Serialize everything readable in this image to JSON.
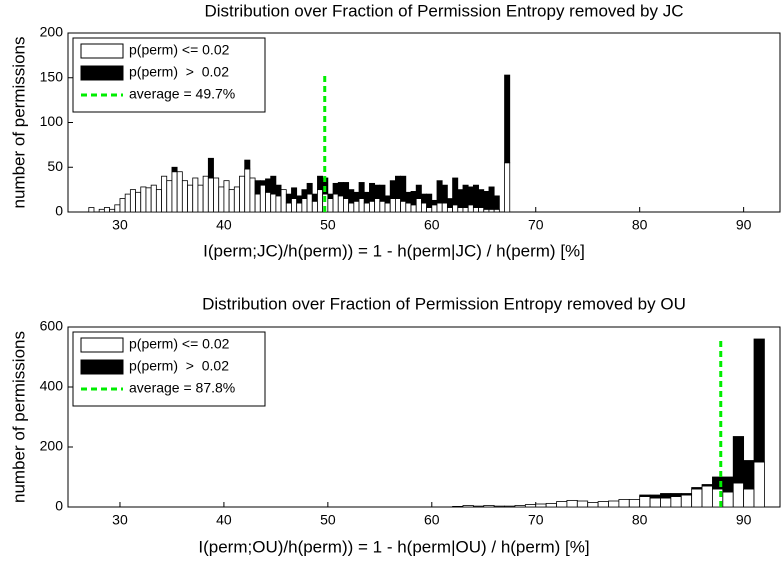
{
  "chart_data": [
    {
      "type": "histogram",
      "title": "Distribution over Fraction of Permission Entropy removed by JC",
      "xlabel": "I(perm;JC)/h(perm)) = 1 - h(perm|JC) / h(perm) [%]",
      "ylabel": "number of permissions",
      "bins": [
        27,
        27.5,
        28,
        28.5,
        29,
        29.5,
        30,
        30.5,
        31,
        31.5,
        32,
        32.5,
        33,
        33.5,
        34,
        34.5,
        35,
        35.5,
        36,
        36.5,
        37,
        37.5,
        38,
        38.5,
        39,
        39.5,
        40,
        40.5,
        41,
        41.5,
        42,
        42.5,
        43,
        43.5,
        44,
        44.5,
        45,
        45.5,
        46,
        46.5,
        47,
        47.5,
        48,
        48.5,
        49,
        49.5,
        50,
        50.5,
        51,
        51.5,
        52,
        52.5,
        53,
        53.5,
        54,
        54.5,
        55,
        55.5,
        56,
        56.5,
        57,
        57.5,
        58,
        58.5,
        59,
        59.5,
        60,
        60.5,
        61,
        61.5,
        62,
        62.5,
        63,
        63.5,
        64,
        64.5,
        65,
        65.5,
        66,
        66.5,
        67,
        67.5
      ],
      "series": [
        {
          "name": "p(perm) <= 0.02",
          "color": "#ffffff",
          "values": [
            5,
            0,
            3,
            5,
            3,
            8,
            15,
            20,
            25,
            22,
            28,
            27,
            30,
            25,
            40,
            35,
            45,
            45,
            35,
            30,
            38,
            30,
            40,
            38,
            38,
            28,
            35,
            25,
            28,
            40,
            48,
            38,
            20,
            30,
            22,
            20,
            18,
            25,
            10,
            15,
            10,
            15,
            20,
            12,
            25,
            20,
            15,
            20,
            18,
            15,
            10,
            12,
            15,
            10,
            12,
            15,
            12,
            10,
            15,
            15,
            12,
            10,
            8,
            15,
            10,
            5,
            8,
            10,
            10,
            5,
            8,
            5,
            5,
            8,
            5,
            5,
            3,
            3,
            3,
            0,
            55
          ]
        },
        {
          "name": "p(perm)  >  0.02",
          "color": "#000000",
          "values": [
            0,
            0,
            0,
            0,
            0,
            0,
            0,
            0,
            0,
            0,
            0,
            0,
            0,
            0,
            0,
            0,
            5,
            0,
            0,
            0,
            0,
            0,
            0,
            22,
            0,
            0,
            0,
            0,
            0,
            0,
            10,
            0,
            15,
            5,
            15,
            20,
            12,
            0,
            10,
            12,
            8,
            10,
            12,
            8,
            15,
            18,
            5,
            12,
            15,
            18,
            15,
            10,
            18,
            12,
            20,
            15,
            18,
            8,
            20,
            25,
            28,
            12,
            15,
            15,
            10,
            15,
            5,
            25,
            20,
            10,
            30,
            20,
            25,
            20,
            25,
            20,
            20,
            25,
            15,
            0,
            98
          ]
        }
      ],
      "average": {
        "value": 49.7,
        "label": "average = 49.7%",
        "color": "#00ee00"
      },
      "xlim": [
        25,
        93.5
      ],
      "xticks": [
        30,
        40,
        50,
        60,
        70,
        80,
        90
      ],
      "ylim": [
        0,
        200
      ],
      "yticks": [
        0,
        50,
        100,
        150,
        200
      ],
      "legend": "upper left"
    },
    {
      "type": "histogram",
      "title": "Distribution over Fraction of Permission Entropy removed by OU",
      "xlabel": "I(perm;OU)/h(perm)) = 1 - h(perm|OU) / h(perm) [%]",
      "ylabel": "number of permissions",
      "bins": [
        62,
        63,
        64,
        65,
        66,
        67,
        68,
        69,
        70,
        71,
        72,
        73,
        74,
        75,
        76,
        77,
        78,
        79,
        80,
        81,
        82,
        83,
        84,
        85,
        86,
        87,
        88,
        89,
        90,
        91,
        92
      ],
      "series": [
        {
          "name": "p(perm) <= 0.02",
          "color": "#ffffff",
          "values": [
            2,
            5,
            3,
            5,
            3,
            3,
            5,
            8,
            10,
            12,
            18,
            22,
            20,
            15,
            18,
            20,
            25,
            25,
            35,
            30,
            30,
            35,
            40,
            60,
            70,
            60,
            50,
            80,
            60,
            150
          ]
        },
        {
          "name": "p(perm)  >  0.02",
          "color": "#000000",
          "values": [
            0,
            0,
            0,
            0,
            0,
            0,
            0,
            0,
            0,
            0,
            0,
            0,
            0,
            0,
            0,
            0,
            0,
            0,
            5,
            10,
            15,
            10,
            5,
            5,
            5,
            40,
            50,
            155,
            95,
            410
          ]
        }
      ],
      "average": {
        "value": 87.8,
        "label": "average = 87.8%",
        "color": "#00ee00"
      },
      "xlim": [
        25,
        93.5
      ],
      "xticks": [
        30,
        40,
        50,
        60,
        70,
        80,
        90
      ],
      "ylim": [
        0,
        600
      ],
      "yticks": [
        0,
        200,
        400,
        600
      ],
      "legend": "upper left"
    }
  ]
}
